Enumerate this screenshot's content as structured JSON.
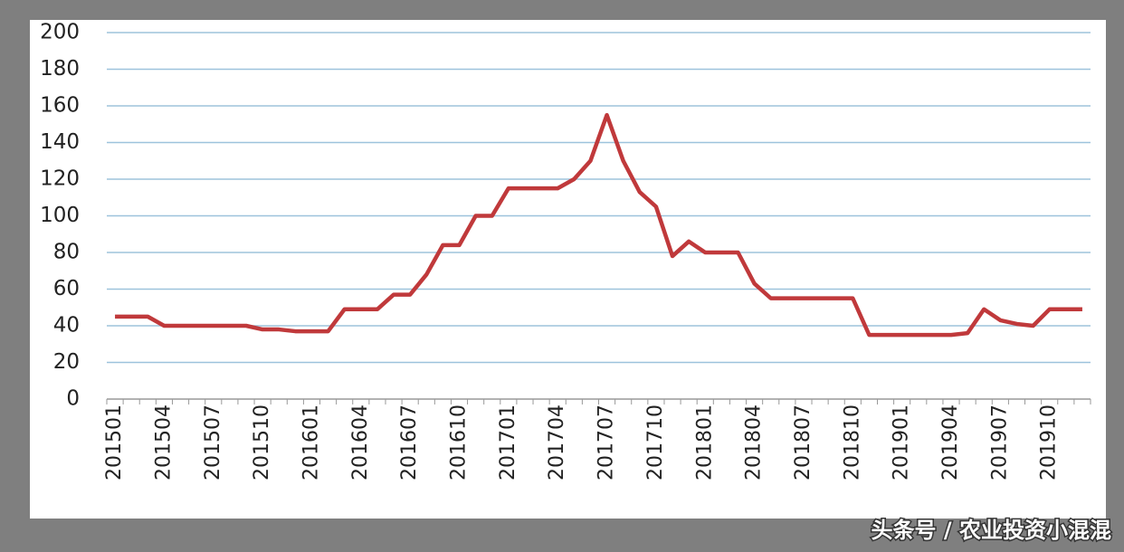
{
  "chart_data": {
    "type": "line",
    "categories": [
      "201501",
      null,
      null,
      "201504",
      null,
      null,
      "201507",
      null,
      null,
      "201510",
      null,
      null,
      "201601",
      null,
      null,
      "201604",
      null,
      null,
      "201607",
      null,
      null,
      "201610",
      null,
      null,
      "201701",
      null,
      null,
      "201704",
      null,
      null,
      "201707",
      null,
      null,
      "201710",
      null,
      null,
      "201801",
      null,
      null,
      "201804",
      null,
      null,
      "201807",
      null,
      null,
      "201810",
      null,
      null,
      "201901",
      null,
      null,
      "201904",
      null,
      null,
      "201907",
      null,
      null,
      "201910",
      null,
      null
    ],
    "series": [
      {
        "color": "#c0393b",
        "values": [
          45,
          45,
          45,
          40,
          40,
          40,
          40,
          40,
          40,
          38,
          38,
          37,
          37,
          37,
          49,
          49,
          49,
          57,
          57,
          68,
          84,
          84,
          100,
          100,
          115,
          115,
          115,
          115,
          120,
          130,
          155,
          130,
          113,
          105,
          78,
          86,
          80,
          80,
          80,
          63,
          55,
          55,
          55,
          55,
          55,
          55,
          35,
          35,
          35,
          35,
          35,
          35,
          36,
          49,
          43,
          41,
          40,
          49,
          49,
          49
        ]
      }
    ],
    "ylim": [
      0,
      200
    ],
    "yticks": [
      0,
      20,
      40,
      60,
      80,
      100,
      120,
      140,
      160,
      180,
      200
    ],
    "grid": true,
    "watermark": "头条号 / 农业投资小混混"
  }
}
